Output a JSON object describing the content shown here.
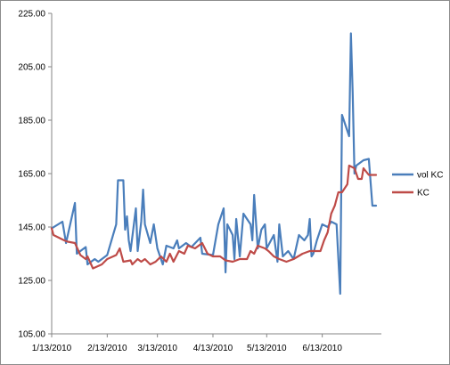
{
  "chart_data": {
    "type": "line",
    "title": "",
    "xlabel": "",
    "ylabel": "",
    "ylim": [
      105,
      225
    ],
    "yticks": [
      "105.00",
      "125.00",
      "145.00",
      "165.00",
      "185.00",
      "205.00",
      "225.00"
    ],
    "xticks": [
      "1/13/2010",
      "2/13/2010",
      "3/13/2010",
      "4/13/2010",
      "5/13/2010",
      "6/13/2010"
    ],
    "xtick_values": [
      "2010-01-13",
      "2010-02-13",
      "2010-03-13",
      "2010-04-13",
      "2010-05-13",
      "2010-06-13"
    ],
    "xlim": [
      "2010-01-13",
      "2010-07-16"
    ],
    "grid": false,
    "legend_position": "right",
    "series": [
      {
        "name": "vol KC",
        "color": "#4a7ebb",
        "points": [
          [
            "2010-01-13",
            144.5
          ],
          [
            "2010-01-19",
            147
          ],
          [
            "2010-01-21",
            139
          ],
          [
            "2010-01-26",
            154
          ],
          [
            "2010-01-27",
            135
          ],
          [
            "2010-02-01",
            137.5
          ],
          [
            "2010-02-02",
            131
          ],
          [
            "2010-02-06",
            133
          ],
          [
            "2010-02-08",
            132
          ],
          [
            "2010-02-13",
            134.5
          ],
          [
            "2010-02-18",
            146
          ],
          [
            "2010-02-19",
            162.5
          ],
          [
            "2010-02-22",
            162.5
          ],
          [
            "2010-02-23",
            144
          ],
          [
            "2010-02-24",
            149
          ],
          [
            "2010-02-25",
            140
          ],
          [
            "2010-02-26",
            136
          ],
          [
            "2010-03-01",
            152
          ],
          [
            "2010-03-02",
            136
          ],
          [
            "2010-03-04",
            147
          ],
          [
            "2010-03-05",
            159
          ],
          [
            "2010-03-06",
            146
          ],
          [
            "2010-03-09",
            139
          ],
          [
            "2010-03-11",
            146
          ],
          [
            "2010-03-13",
            137
          ],
          [
            "2010-03-16",
            131
          ],
          [
            "2010-03-18",
            138
          ],
          [
            "2010-03-22",
            137
          ],
          [
            "2010-03-24",
            140
          ],
          [
            "2010-03-25",
            137
          ],
          [
            "2010-03-29",
            139
          ],
          [
            "2010-04-01",
            137.5
          ],
          [
            "2010-04-06",
            141
          ],
          [
            "2010-04-07",
            135
          ],
          [
            "2010-04-13",
            134.5
          ],
          [
            "2010-04-16",
            146
          ],
          [
            "2010-04-19",
            152
          ],
          [
            "2010-04-20",
            128
          ],
          [
            "2010-04-21",
            146
          ],
          [
            "2010-04-24",
            142
          ],
          [
            "2010-04-25",
            133
          ],
          [
            "2010-04-26",
            148
          ],
          [
            "2010-04-28",
            134
          ],
          [
            "2010-04-30",
            150
          ],
          [
            "2010-05-04",
            146
          ],
          [
            "2010-05-05",
            140
          ],
          [
            "2010-05-06",
            157
          ],
          [
            "2010-05-08",
            137
          ],
          [
            "2010-05-10",
            144
          ],
          [
            "2010-05-12",
            146
          ],
          [
            "2010-05-13",
            137
          ],
          [
            "2010-05-17",
            142
          ],
          [
            "2010-05-19",
            132
          ],
          [
            "2010-05-20",
            146
          ],
          [
            "2010-05-22",
            134
          ],
          [
            "2010-05-25",
            136
          ],
          [
            "2010-05-28",
            133
          ],
          [
            "2010-05-31",
            142
          ],
          [
            "2010-06-03",
            140
          ],
          [
            "2010-06-05",
            142
          ],
          [
            "2010-06-06",
            148
          ],
          [
            "2010-06-07",
            134
          ],
          [
            "2010-06-08",
            135
          ],
          [
            "2010-06-10",
            140
          ],
          [
            "2010-06-13",
            146
          ],
          [
            "2010-06-16",
            145
          ],
          [
            "2010-06-18",
            147
          ],
          [
            "2010-06-21",
            146
          ],
          [
            "2010-06-23",
            120
          ],
          [
            "2010-06-24",
            187
          ],
          [
            "2010-06-28",
            179
          ],
          [
            "2010-06-29",
            217.5
          ],
          [
            "2010-06-30",
            195
          ],
          [
            "2010-07-01",
            165
          ],
          [
            "2010-07-02",
            168
          ],
          [
            "2010-07-06",
            170
          ],
          [
            "2010-07-09",
            170.5
          ],
          [
            "2010-07-11",
            153
          ],
          [
            "2010-07-13",
            153
          ]
        ]
      },
      {
        "name": "KC",
        "color": "#be4b48",
        "points": [
          [
            "2010-01-13",
            144.5
          ],
          [
            "2010-01-14",
            142
          ],
          [
            "2010-01-20",
            140
          ],
          [
            "2010-01-22",
            139.5
          ],
          [
            "2010-01-26",
            139
          ],
          [
            "2010-01-29",
            134.5
          ],
          [
            "2010-02-01",
            133
          ],
          [
            "2010-02-02",
            134
          ],
          [
            "2010-02-05",
            129.5
          ],
          [
            "2010-02-10",
            131
          ],
          [
            "2010-02-13",
            133
          ],
          [
            "2010-02-18",
            134.5
          ],
          [
            "2010-02-20",
            137
          ],
          [
            "2010-02-22",
            132
          ],
          [
            "2010-02-26",
            132.5
          ],
          [
            "2010-02-27",
            131
          ],
          [
            "2010-03-02",
            133
          ],
          [
            "2010-03-04",
            132
          ],
          [
            "2010-03-06",
            133
          ],
          [
            "2010-03-09",
            131
          ],
          [
            "2010-03-12",
            132
          ],
          [
            "2010-03-15",
            134
          ],
          [
            "2010-03-18",
            132
          ],
          [
            "2010-03-20",
            135
          ],
          [
            "2010-03-22",
            132
          ],
          [
            "2010-03-25",
            136
          ],
          [
            "2010-03-28",
            135
          ],
          [
            "2010-03-30",
            138
          ],
          [
            "2010-04-03",
            137
          ],
          [
            "2010-04-07",
            139
          ],
          [
            "2010-04-10",
            135
          ],
          [
            "2010-04-13",
            134
          ],
          [
            "2010-04-17",
            134
          ],
          [
            "2010-04-20",
            132.5
          ],
          [
            "2010-04-24",
            132
          ],
          [
            "2010-04-28",
            133
          ],
          [
            "2010-05-02",
            133
          ],
          [
            "2010-05-04",
            136
          ],
          [
            "2010-05-06",
            135
          ],
          [
            "2010-05-08",
            138
          ],
          [
            "2010-05-12",
            137
          ],
          [
            "2010-05-14",
            136
          ],
          [
            "2010-05-17",
            134
          ],
          [
            "2010-05-20",
            133
          ],
          [
            "2010-05-24",
            132
          ],
          [
            "2010-05-28",
            133
          ],
          [
            "2010-06-02",
            135
          ],
          [
            "2010-06-06",
            136
          ],
          [
            "2010-06-10",
            136
          ],
          [
            "2010-06-12",
            136
          ],
          [
            "2010-06-14",
            140
          ],
          [
            "2010-06-16",
            143
          ],
          [
            "2010-06-18",
            150
          ],
          [
            "2010-06-20",
            153
          ],
          [
            "2010-06-22",
            158
          ],
          [
            "2010-06-24",
            158
          ],
          [
            "2010-06-26",
            160
          ],
          [
            "2010-06-27",
            161
          ],
          [
            "2010-06-28",
            168
          ],
          [
            "2010-07-01",
            167
          ],
          [
            "2010-07-03",
            163
          ],
          [
            "2010-07-05",
            163
          ],
          [
            "2010-07-06",
            167
          ],
          [
            "2010-07-09",
            164.5
          ],
          [
            "2010-07-13",
            164.5
          ]
        ]
      }
    ]
  }
}
